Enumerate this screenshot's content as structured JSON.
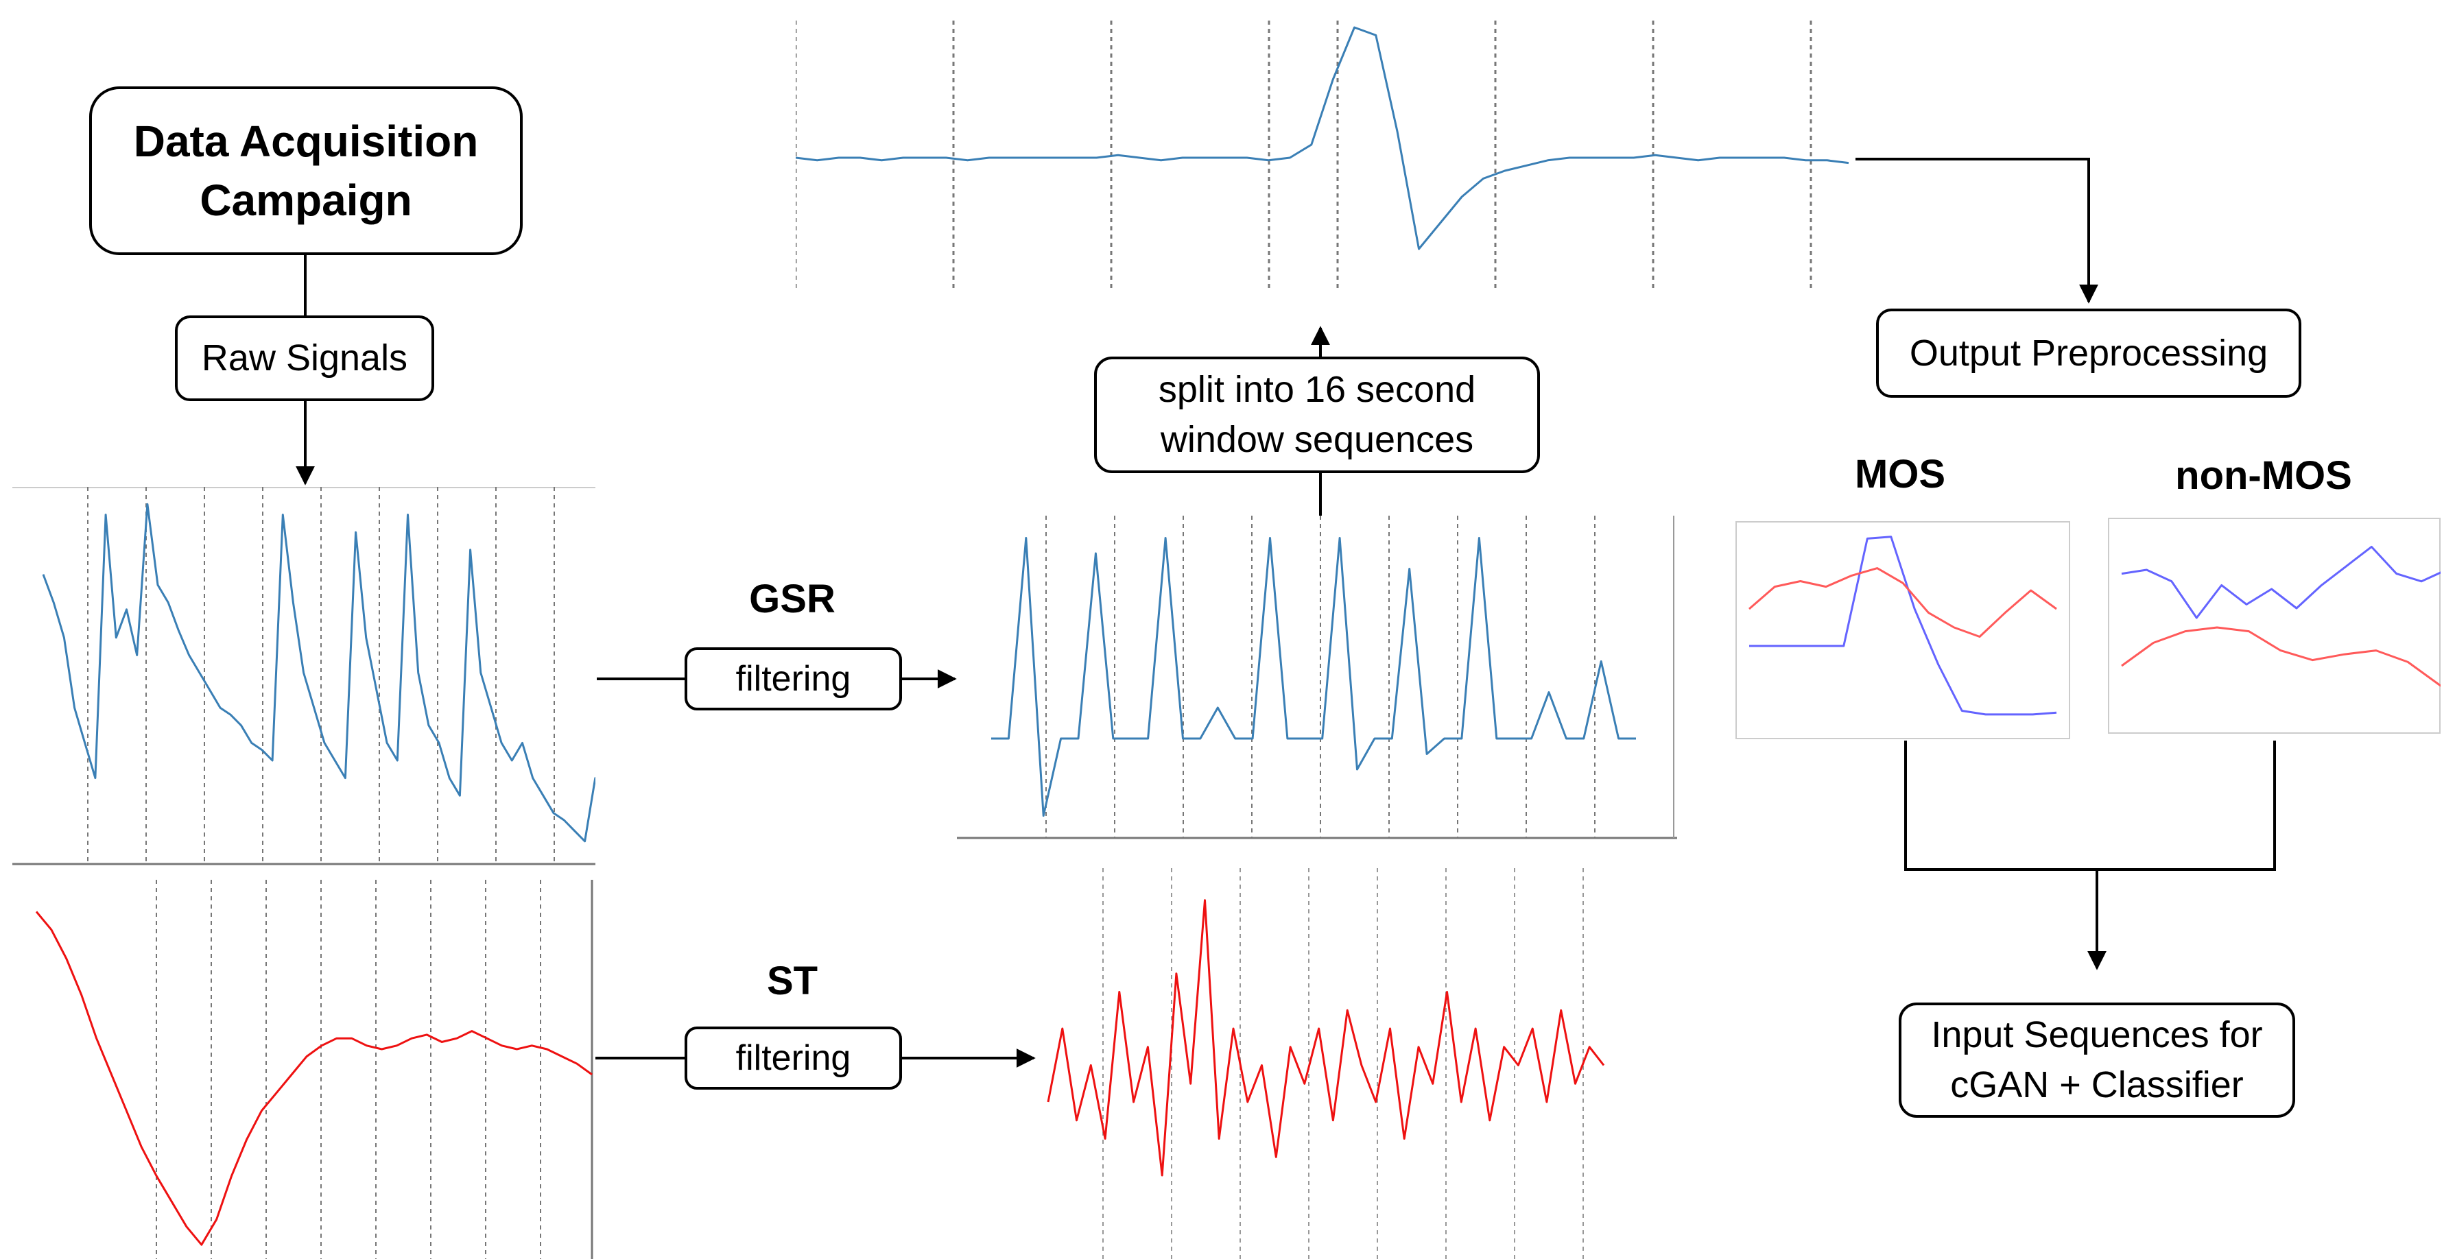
{
  "acquisition": {
    "title": "Data Acquisition Campaign"
  },
  "raw_signals": {
    "label": "Raw Signals"
  },
  "gsr": {
    "label": "GSR",
    "filter_label": "filtering"
  },
  "st": {
    "label": "ST",
    "filter_label": "filtering"
  },
  "split": {
    "label": "split into 16 second window sequences"
  },
  "output_preprocessing": {
    "label": "Output Preprocessing"
  },
  "mos": {
    "label": "MOS"
  },
  "non_mos": {
    "label": "non-MOS"
  },
  "input_sequences": {
    "label": "Input Sequences for cGAN + Classifier"
  },
  "colors": {
    "gsr_line": "#3a7fb5",
    "st_line": "#ee1111",
    "mos_blue": "#6464ff",
    "mos_red": "#ff5a5a",
    "divider": "#777777",
    "frame": "#cccccc"
  },
  "chart_data": [
    {
      "type": "line",
      "series": [
        {
          "name": "",
          "values": [
            0.78,
            0.7,
            0.6,
            0.4,
            0.3,
            0.2,
            0.95,
            0.6,
            0.68,
            0.55,
            0.98,
            0.75,
            0.7,
            0.62,
            0.55,
            0.5,
            0.45,
            0.4,
            0.38,
            0.35,
            0.3,
            0.28,
            0.25,
            0.95,
            0.7,
            0.5,
            0.4,
            0.3,
            0.25,
            0.2,
            0.9,
            0.6,
            0.45,
            0.3,
            0.25,
            0.95,
            0.5,
            0.35,
            0.3,
            0.2,
            0.15,
            0.85,
            0.5,
            0.4,
            0.3,
            0.25,
            0.3,
            0.2,
            0.15,
            0.1,
            0.08,
            0.05,
            0.02,
            0.2,
            0.05
          ]
        }
      ]
    },
    {
      "type": "line",
      "series": [
        {
          "name": "",
          "values": [
            0.95,
            0.9,
            0.82,
            0.72,
            0.6,
            0.5,
            0.4,
            0.3,
            0.22,
            0.15,
            0.08,
            0.03,
            0.1,
            0.22,
            0.32,
            0.4,
            0.45,
            0.5,
            0.55,
            0.58,
            0.6,
            0.6,
            0.58,
            0.57,
            0.58,
            0.6,
            0.61,
            0.59,
            0.6,
            0.62,
            0.6,
            0.58,
            0.57,
            0.58,
            0.57,
            0.55,
            0.53,
            0.5
          ]
        }
      ]
    },
    {
      "type": "line",
      "series": [
        {
          "name": "",
          "values": [
            0.3,
            0.3,
            0.95,
            0.05,
            0.3,
            0.3,
            0.9,
            0.3,
            0.3,
            0.3,
            0.95,
            0.3,
            0.3,
            0.4,
            0.3,
            0.3,
            0.95,
            0.3,
            0.3,
            0.3,
            0.95,
            0.2,
            0.3,
            0.3,
            0.85,
            0.25,
            0.3,
            0.3,
            0.95,
            0.3,
            0.3,
            0.3,
            0.45,
            0.3,
            0.3,
            0.55,
            0.3,
            0.3
          ]
        }
      ]
    },
    {
      "type": "line",
      "series": [
        {
          "name": "",
          "values": [
            0.4,
            0.6,
            0.35,
            0.5,
            0.3,
            0.7,
            0.4,
            0.55,
            0.2,
            0.75,
            0.45,
            0.95,
            0.3,
            0.6,
            0.4,
            0.5,
            0.25,
            0.55,
            0.45,
            0.6,
            0.35,
            0.65,
            0.5,
            0.4,
            0.6,
            0.3,
            0.55,
            0.45,
            0.7,
            0.4,
            0.6,
            0.35,
            0.55,
            0.5,
            0.6,
            0.4,
            0.65,
            0.45,
            0.55,
            0.5
          ]
        }
      ]
    },
    {
      "type": "line",
      "series": [
        {
          "name": "",
          "values": [
            0.5,
            0.49,
            0.5,
            0.5,
            0.49,
            0.5,
            0.5,
            0.5,
            0.49,
            0.5,
            0.5,
            0.5,
            0.5,
            0.5,
            0.5,
            0.51,
            0.5,
            0.49,
            0.5,
            0.5,
            0.5,
            0.5,
            0.49,
            0.5,
            0.55,
            0.8,
            1.0,
            0.97,
            0.6,
            0.15,
            0.25,
            0.35,
            0.42,
            0.45,
            0.47,
            0.49,
            0.5,
            0.5,
            0.5,
            0.5,
            0.51,
            0.5,
            0.49,
            0.5,
            0.5,
            0.5,
            0.5,
            0.49,
            0.49,
            0.48
          ]
        }
      ]
    },
    {
      "type": "line",
      "series": [
        {
          "name": "",
          "values": [
            0.4,
            0.4,
            0.4,
            0.4,
            0.4,
            0.98,
            0.99,
            0.6,
            0.3,
            0.05,
            0.03,
            0.03,
            0.03,
            0.04
          ]
        },
        {
          "name": "",
          "values": [
            0.6,
            0.72,
            0.75,
            0.72,
            0.78,
            0.82,
            0.74,
            0.58,
            0.5,
            0.45,
            0.58,
            0.7,
            0.6
          ]
        }
      ]
    },
    {
      "type": "line",
      "series": [
        {
          "name": "",
          "values": [
            0.78,
            0.8,
            0.74,
            0.55,
            0.72,
            0.62,
            0.7,
            0.6,
            0.72,
            0.82,
            0.92,
            0.78,
            0.74,
            0.8,
            0.79
          ]
        },
        {
          "name": "",
          "values": [
            0.3,
            0.42,
            0.48,
            0.5,
            0.48,
            0.38,
            0.33,
            0.36,
            0.38,
            0.32,
            0.2,
            0.1
          ]
        }
      ]
    }
  ]
}
